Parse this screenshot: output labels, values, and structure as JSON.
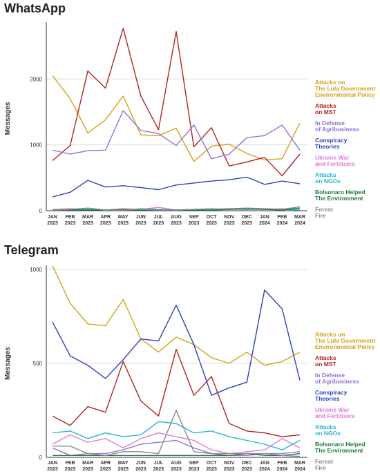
{
  "months": [
    "JAN\n2023",
    "FEB\n2023",
    "MAR\n2023",
    "APR\n2023",
    "MAY\n2023",
    "JUN\n2023",
    "JUL\n2023",
    "AUG\n2023",
    "SEP\n2023",
    "OCT\n2023",
    "NOV\n2023",
    "DEC\n2023",
    "JAN\n2024",
    "FEB\n2024",
    "MAR\n2024"
  ],
  "series_styles": [
    {
      "name": "Attacks on\nThe Lula Government\nEnvironmental Policy",
      "color": "#d4a017"
    },
    {
      "name": "Attacks\non MST",
      "color": "#b22222"
    },
    {
      "name": "In Defense\nof Agribusiness",
      "color": "#9370db"
    },
    {
      "name": "Conspiracy\nTheories",
      "color": "#2c3ec4"
    },
    {
      "name": "Ukraine War\nand Fertilizers",
      "color": "#e07ad9"
    },
    {
      "name": "Attacks\non NGOs",
      "color": "#28b4d4"
    },
    {
      "name": "Bolsonaro Helped\nThe Environment",
      "color": "#1a7a3a"
    },
    {
      "name": "Forest\nFire",
      "color": "#888888"
    }
  ],
  "chart_data": [
    {
      "type": "line",
      "title": "WhatsApp",
      "ylabel": "Messages",
      "ylim": [
        0,
        2800
      ],
      "yticks": [
        0,
        1000,
        2000
      ],
      "grid": true,
      "legend": "right",
      "x": [
        "JAN 2023",
        "FEB 2023",
        "MAR 2023",
        "APR 2023",
        "MAY 2023",
        "JUN 2023",
        "JUL 2023",
        "AUG 2023",
        "SEP 2023",
        "OCT 2023",
        "NOV 2023",
        "DEC 2023",
        "JAN 2024",
        "FEB 2024",
        "MAR 2024"
      ],
      "series": [
        {
          "name": "Attacks on The Lula Government Environmental Policy",
          "values": [
            2050,
            1700,
            1180,
            1380,
            1740,
            1150,
            1140,
            1250,
            750,
            980,
            1010,
            870,
            770,
            790,
            1330
          ]
        },
        {
          "name": "Attacks on MST",
          "values": [
            760,
            990,
            2120,
            1860,
            2770,
            1740,
            1230,
            2720,
            970,
            1260,
            680,
            740,
            810,
            530,
            860
          ]
        },
        {
          "name": "In Defense of Agribusiness",
          "values": [
            920,
            860,
            910,
            920,
            1520,
            1220,
            1170,
            990,
            1300,
            790,
            860,
            1110,
            1140,
            1300,
            920
          ]
        },
        {
          "name": "Conspiracy Theories",
          "values": [
            210,
            280,
            460,
            360,
            380,
            350,
            320,
            390,
            420,
            450,
            470,
            510,
            400,
            450,
            410
          ]
        },
        {
          "name": "Ukraine War and Fertilizers",
          "values": [
            20,
            30,
            20,
            10,
            30,
            20,
            50,
            10,
            20,
            20,
            30,
            20,
            20,
            30,
            10
          ]
        },
        {
          "name": "Attacks on NGOs",
          "values": [
            10,
            20,
            20,
            10,
            10,
            30,
            20,
            10,
            20,
            30,
            20,
            20,
            30,
            20,
            10
          ]
        },
        {
          "name": "Bolsonaro Helped The Environment",
          "values": [
            0,
            10,
            10,
            10,
            20,
            10,
            10,
            10,
            10,
            10,
            20,
            30,
            20,
            10,
            40
          ]
        },
        {
          "name": "Forest Fire",
          "values": [
            10,
            20,
            40,
            10,
            10,
            20,
            10,
            10,
            20,
            20,
            30,
            40,
            30,
            20,
            60
          ]
        }
      ]
    },
    {
      "type": "line",
      "title": "Telegram",
      "ylabel": "Messages",
      "ylim": [
        0,
        1000
      ],
      "yticks": [
        0,
        500,
        1000
      ],
      "grid": true,
      "legend": "right",
      "x": [
        "JAN 2023",
        "FEB 2023",
        "MAR 2023",
        "APR 2023",
        "MAY 2023",
        "JUN 2023",
        "JUL 2023",
        "AUG 2023",
        "SEP 2023",
        "OCT 2023",
        "NOV 2023",
        "DEC 2023",
        "JAN 2024",
        "FEB 2024",
        "MAR 2024"
      ],
      "series": [
        {
          "name": "Attacks on The Lula Government Environmental Policy",
          "values": [
            1020,
            820,
            710,
            700,
            840,
            630,
            560,
            640,
            600,
            530,
            500,
            560,
            490,
            510,
            560
          ]
        },
        {
          "name": "Attacks on MST",
          "values": [
            220,
            170,
            270,
            240,
            510,
            300,
            220,
            575,
            330,
            430,
            180,
            140,
            130,
            110,
            120
          ]
        },
        {
          "name": "In Defense of Agribusiness",
          "values": [
            50,
            10,
            20,
            20,
            40,
            70,
            80,
            90,
            50,
            20,
            10,
            10,
            20,
            20,
            30
          ]
        },
        {
          "name": "Conspiracy Theories",
          "values": [
            720,
            540,
            490,
            420,
            520,
            630,
            620,
            810,
            600,
            330,
            370,
            400,
            890,
            790,
            410
          ]
        },
        {
          "name": "Ukraine War and Fertilizers",
          "values": [
            70,
            120,
            80,
            100,
            50,
            100,
            130,
            110,
            90,
            40,
            20,
            30,
            40,
            100,
            50
          ]
        },
        {
          "name": "Attacks on NGOs",
          "values": [
            130,
            140,
            100,
            130,
            110,
            120,
            190,
            180,
            130,
            140,
            110,
            90,
            70,
            40,
            90
          ]
        },
        {
          "name": "Bolsonaro Helped The Environment",
          "values": [
            10,
            10,
            10,
            10,
            10,
            10,
            10,
            10,
            10,
            10,
            10,
            20,
            10,
            10,
            20
          ]
        },
        {
          "name": "Forest Fire",
          "values": [
            60,
            60,
            20,
            10,
            30,
            30,
            20,
            250,
            30,
            20,
            20,
            20,
            20,
            10,
            5
          ]
        }
      ]
    }
  ]
}
